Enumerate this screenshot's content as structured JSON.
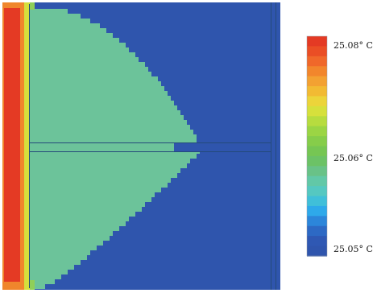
{
  "colorbar": {
    "max_label": "25.08° C",
    "mid_label": "25.06° C",
    "min_label": "25.05° C",
    "colors_top_to_bottom": [
      "#e43a24",
      "#ea4e25",
      "#f0682a",
      "#f2862c",
      "#f3a132",
      "#f2ba33",
      "#ecd43a",
      "#d6e03c",
      "#b7dc3f",
      "#9bd544",
      "#86cd4a",
      "#76c653",
      "#6cc266",
      "#69c287",
      "#62c8a7",
      "#55c8c1",
      "#40bfd9",
      "#2ea9ea",
      "#2c86da",
      "#2d69c4",
      "#2f58b3",
      "#2f55ad"
    ]
  },
  "field_colors": {
    "background": "#2f55ad",
    "plume": "#6cc39a",
    "hot_strip": "#e43a24",
    "edge_orange": "#f0862c",
    "edge_yellow": "#d6df3c",
    "edge_green": "#8fcf59",
    "divider": "#244a7a"
  }
}
